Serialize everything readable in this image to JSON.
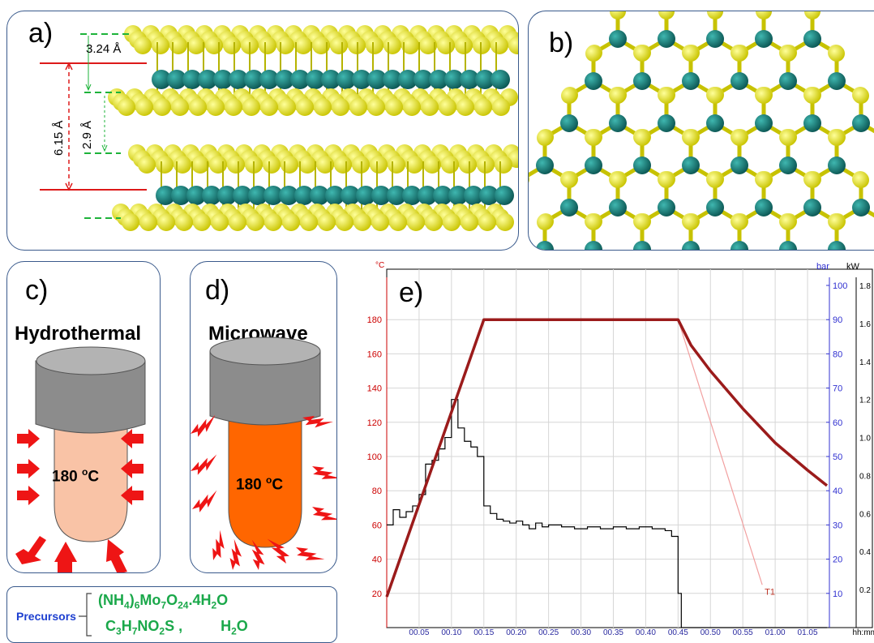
{
  "panels": {
    "a": {
      "label": "a)",
      "dims": {
        "d1": "3.24 Å",
        "d2": "2.9 Å",
        "d3": "6.15 Å"
      }
    },
    "b": {
      "label": "b)"
    },
    "c": {
      "label": "c)",
      "title": "Hydrothermal",
      "temp_value": "180 ",
      "temp_sup": "o",
      "temp_unit": "C"
    },
    "d": {
      "label": "d)",
      "title": "Microwave",
      "temp_value": "180 ",
      "temp_sup": "o",
      "temp_unit": "C"
    },
    "precursors": {
      "label": "Precursors",
      "line1": {
        "a": "(NH",
        "b": "4",
        "c": ")",
        "d": "6",
        "e": "Mo",
        "f": "7",
        "g": "O",
        "h": "24",
        "i": ".4H",
        "j": "2",
        "k": "O"
      },
      "line2": {
        "a": "C",
        "b": "3",
        "c": "H",
        "d": "7",
        "e": "NO",
        "f": "2",
        "g": "S",
        "h": "  ,",
        "i": "H",
        "j": "2",
        "k": "O"
      }
    },
    "e": {
      "label": "e)"
    }
  },
  "chart_data": {
    "type": "line",
    "label": "e)",
    "x_unit": "hh:mm",
    "x_ticks": [
      "00.05",
      "00.10",
      "00.15",
      "00.20",
      "00.25",
      "00.30",
      "00.35",
      "00.40",
      "00.45",
      "00.50",
      "00.55",
      "01.00",
      "01.05"
    ],
    "x_range_min": [
      0,
      68
    ],
    "left_axis": {
      "unit": "°C",
      "ticks": [
        "20",
        "40",
        "60",
        "80",
        "100",
        "120",
        "140",
        "160",
        "180"
      ],
      "range": [
        0,
        200
      ]
    },
    "right_axis1": {
      "unit": "bar",
      "ticks": [
        "10",
        "20",
        "30",
        "40",
        "50",
        "60",
        "70",
        "80",
        "90",
        "100"
      ],
      "range": [
        0,
        100
      ]
    },
    "right_axis2": {
      "unit": "kW",
      "ticks": [
        "0.2",
        "0.4",
        "0.6",
        "0.8",
        "1.0",
        "1.2",
        "1.4",
        "1.6",
        "1.8"
      ],
      "range": [
        0,
        1.8
      ]
    },
    "series": [
      {
        "unit": "°C",
        "color": "#9b1b1b",
        "points": [
          [
            0,
            18
          ],
          [
            15,
            180
          ],
          [
            45,
            180
          ],
          [
            47,
            165
          ],
          [
            50,
            150
          ],
          [
            55,
            128
          ],
          [
            60,
            108
          ],
          [
            65,
            92
          ],
          [
            68,
            83
          ]
        ]
      },
      {
        "unit": "kW",
        "color": "#000000",
        "points": [
          [
            0,
            0.54
          ],
          [
            1,
            0.62
          ],
          [
            2,
            0.58
          ],
          [
            3,
            0.61
          ],
          [
            4,
            0.64
          ],
          [
            5,
            0.7
          ],
          [
            6,
            0.86
          ],
          [
            7,
            0.88
          ],
          [
            8,
            0.94
          ],
          [
            9,
            1.0
          ],
          [
            10,
            1.2
          ],
          [
            11,
            1.05
          ],
          [
            12,
            0.98
          ],
          [
            13,
            0.95
          ],
          [
            14,
            0.9
          ],
          [
            15,
            0.64
          ],
          [
            16,
            0.6
          ],
          [
            17,
            0.57
          ],
          [
            18,
            0.56
          ],
          [
            19,
            0.55
          ],
          [
            20,
            0.56
          ],
          [
            21,
            0.54
          ],
          [
            22,
            0.52
          ],
          [
            23,
            0.55
          ],
          [
            24,
            0.53
          ],
          [
            25,
            0.54
          ],
          [
            27,
            0.53
          ],
          [
            29,
            0.52
          ],
          [
            31,
            0.53
          ],
          [
            33,
            0.52
          ],
          [
            35,
            0.53
          ],
          [
            37,
            0.52
          ],
          [
            39,
            0.53
          ],
          [
            41,
            0.52
          ],
          [
            43,
            0.51
          ],
          [
            44,
            0.48
          ],
          [
            45,
            0.18
          ],
          [
            45.5,
            0.0
          ],
          [
            68,
            0.0
          ]
        ]
      },
      {
        "name": "T1",
        "color": "#f2a0a0",
        "points": [
          [
            45,
            180
          ],
          [
            58,
            25
          ]
        ]
      }
    ]
  }
}
